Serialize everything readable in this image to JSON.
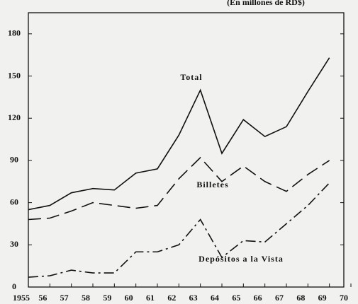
{
  "chart_data": {
    "type": "line",
    "subtitle": "(En millones de RD$)",
    "x": [
      1955,
      1956,
      1957,
      1958,
      1959,
      1960,
      1961,
      1962,
      1963,
      1964,
      1965,
      1966,
      1967,
      1968,
      1969
    ],
    "series": [
      {
        "name": "Total",
        "color": "#111111",
        "values": [
          55,
          58,
          67,
          70,
          69,
          81,
          84,
          108,
          140,
          95,
          119,
          107,
          114,
          139,
          163
        ]
      },
      {
        "name": "Billetes",
        "color": "#111111",
        "values": [
          48,
          49,
          54,
          60,
          58,
          56,
          58,
          77,
          92,
          75,
          86,
          75,
          68,
          80,
          90
        ]
      },
      {
        "name": "Depósitos a la Vista",
        "color": "#111111",
        "values": [
          7,
          8,
          12,
          10,
          10,
          25,
          25,
          30,
          48,
          21,
          33,
          32,
          45,
          58,
          74
        ]
      }
    ],
    "xlim": [
      1955,
      1970
    ],
    "xticks": [
      {
        "value": 1955,
        "label": "1955"
      },
      {
        "value": 1956,
        "label": "56"
      },
      {
        "value": 1957,
        "label": "57"
      },
      {
        "value": 1958,
        "label": "58"
      },
      {
        "value": 1959,
        "label": "59"
      },
      {
        "value": 1960,
        "label": "60"
      },
      {
        "value": 1961,
        "label": "61"
      },
      {
        "value": 1962,
        "label": "62"
      },
      {
        "value": 1963,
        "label": "63"
      },
      {
        "value": 1964,
        "label": "64"
      },
      {
        "value": 1965,
        "label": "65"
      },
      {
        "value": 1966,
        "label": "66"
      },
      {
        "value": 1967,
        "label": "67"
      },
      {
        "value": 1968,
        "label": "68"
      },
      {
        "value": 1969,
        "label": "69"
      },
      {
        "value": 1970,
        "label": "70"
      }
    ],
    "ylim": [
      0,
      195
    ],
    "yticks": [
      0,
      30,
      60,
      90,
      120,
      150,
      180
    ],
    "grid": false
  }
}
